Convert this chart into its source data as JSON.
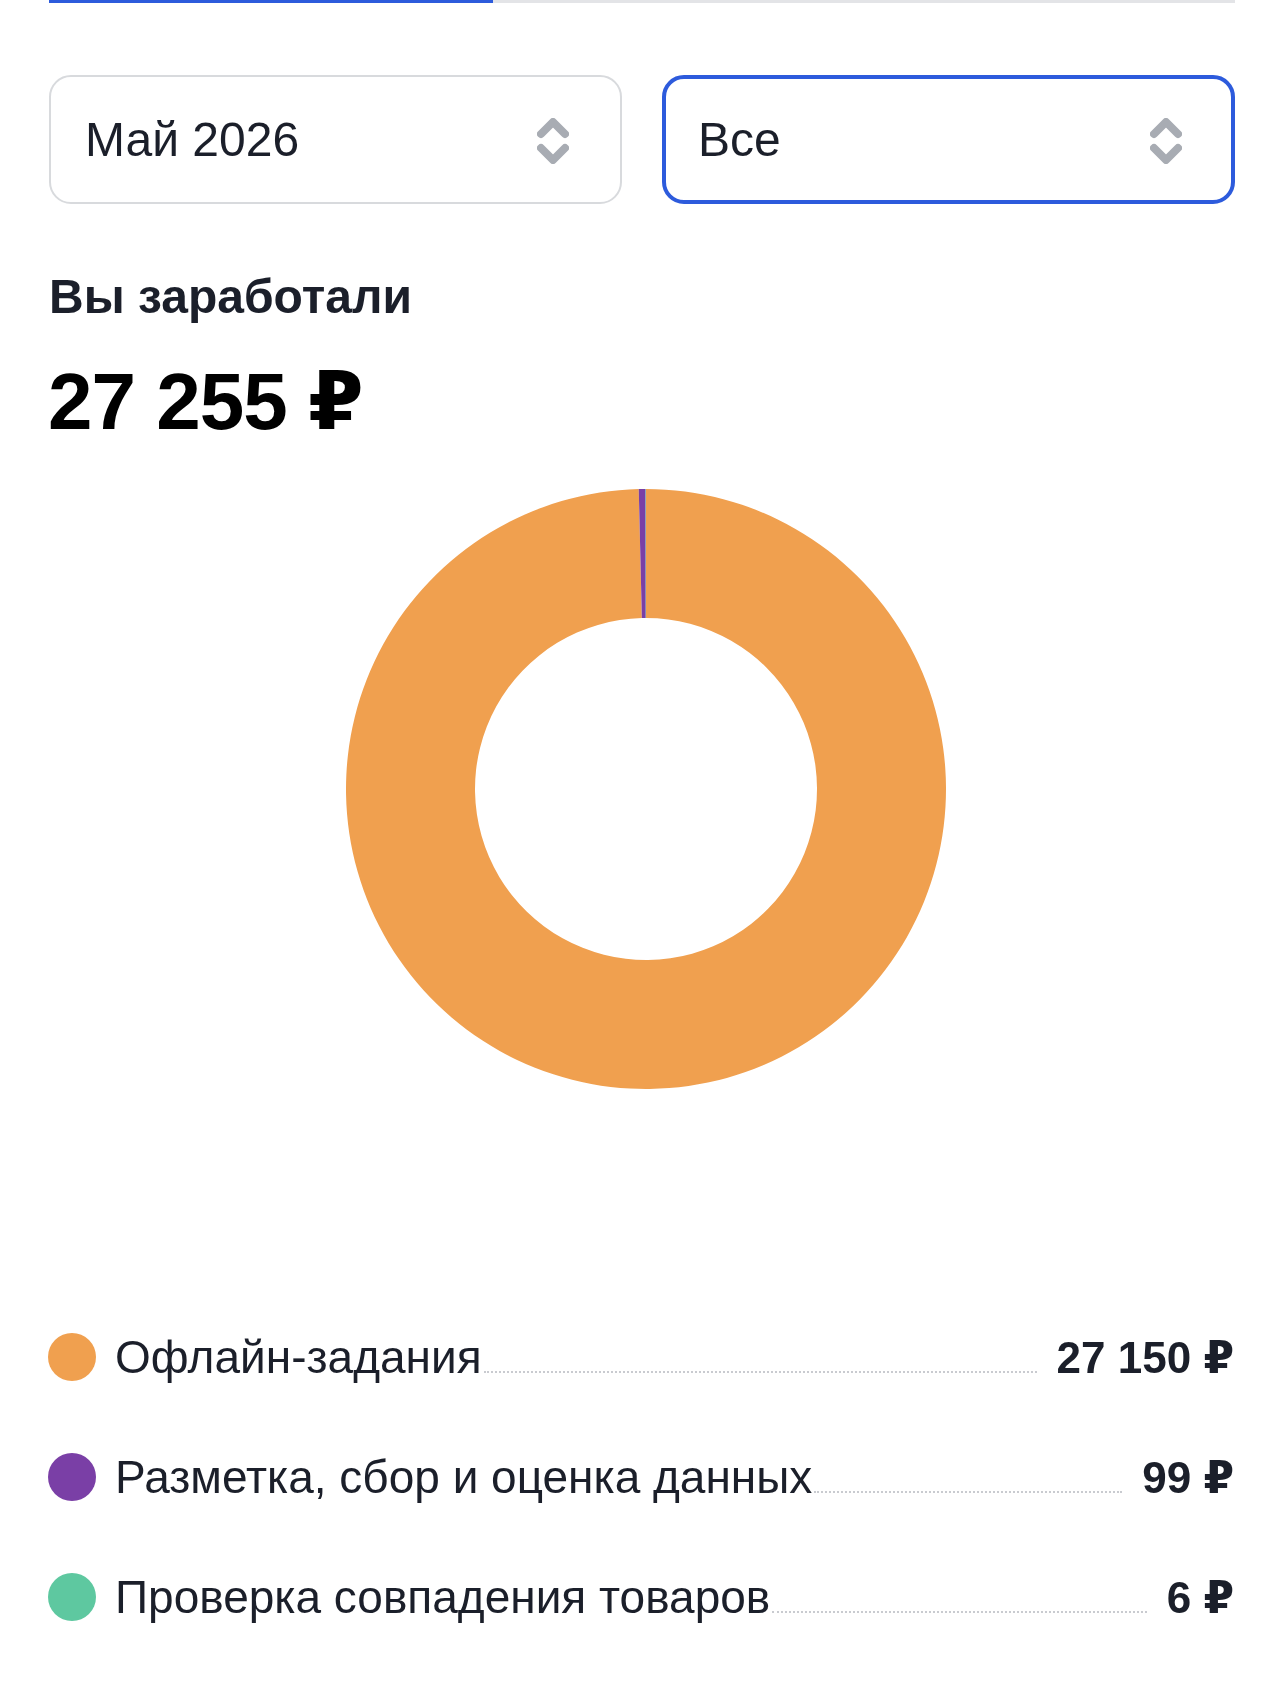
{
  "chart_data": {
    "type": "donut",
    "title": "Вы заработали",
    "subtitle": "27 255 ₽",
    "categories": [
      "Офлайн-задания",
      "Разметка, сбор и оценка данных",
      "Проверка совпадения товаров"
    ],
    "values": [
      27150,
      99,
      6
    ],
    "colors": [
      "#f0a04f",
      "#7a3fa6",
      "#5ec8a0"
    ],
    "value_labels": [
      "27 150 ₽",
      "99 ₽",
      "6 ₽"
    ],
    "legend": "bottom",
    "annotations": [
      "Май 2026",
      "Все"
    ]
  }
}
